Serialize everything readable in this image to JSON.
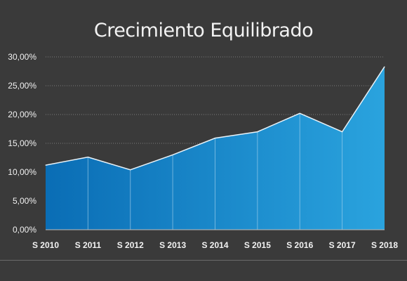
{
  "chart_data": {
    "type": "area",
    "title": "Crecimiento Equilibrado",
    "categories": [
      "S 2010",
      "S 2011",
      "S 2012",
      "S 2013",
      "S 2014",
      "S 2015",
      "S 2016",
      "S 2017",
      "S 2018"
    ],
    "values": [
      0.112,
      0.126,
      0.104,
      0.13,
      0.159,
      0.17,
      0.202,
      0.17,
      0.283
    ],
    "ylim": [
      0,
      0.3
    ],
    "yticks": [
      "0,00%",
      "5,00%",
      "10,00%",
      "15,00%",
      "20,00%",
      "25,00%",
      "30,00%"
    ],
    "ytick_values": [
      0,
      0.05,
      0.1,
      0.15,
      0.2,
      0.25,
      0.3
    ],
    "grid": true,
    "colors": {
      "fill_start": "#0a6db5",
      "fill_end": "#2aa3de",
      "line": "#e8f2f8",
      "gridline": "#7a7a7a",
      "text": "#f2f2f2",
      "background": "#3a3a3a"
    }
  }
}
